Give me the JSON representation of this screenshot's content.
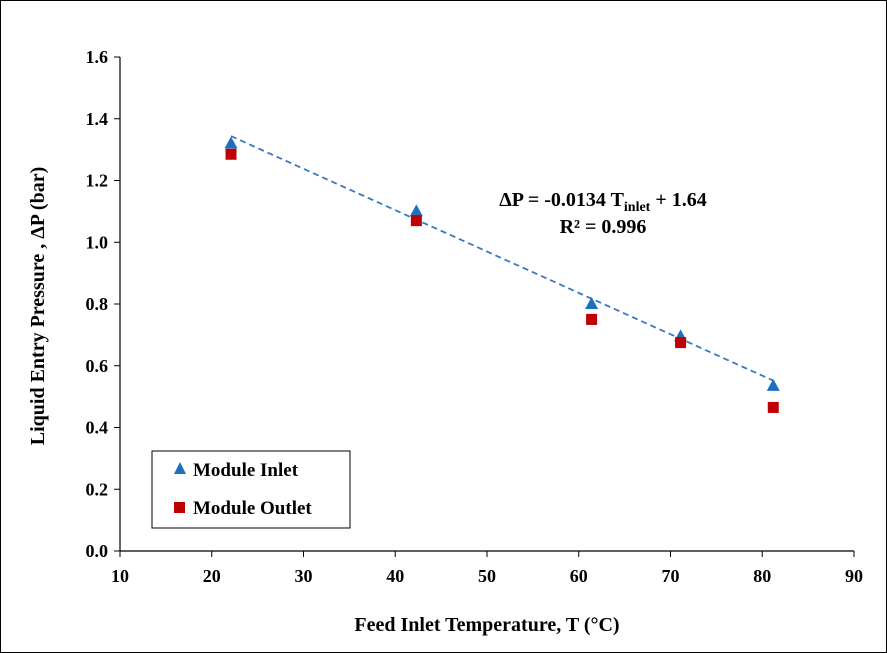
{
  "chart_data": {
    "type": "scatter",
    "xlabel": "Feed Inlet Temperature, T (°C)",
    "ylabel": "Liquid Entry Pressure , ΔP (bar)",
    "xlim": [
      10,
      90
    ],
    "ylim": [
      0.0,
      1.6
    ],
    "xticks": [
      "10",
      "20",
      "30",
      "40",
      "50",
      "60",
      "70",
      "80",
      "90"
    ],
    "yticks": [
      "0.0",
      "0.2",
      "0.4",
      "0.6",
      "0.8",
      "1.0",
      "1.2",
      "1.4",
      "1.6"
    ],
    "grid": false,
    "legend_position": "bottom-left",
    "series": [
      {
        "name": "Module Inlet",
        "marker": "triangle",
        "color": "#1f6fbf",
        "x": [
          22.1,
          42.3,
          61.4,
          71.1,
          81.2
        ],
        "y": [
          1.32,
          1.1,
          0.8,
          0.695,
          0.535
        ]
      },
      {
        "name": "Module Outlet",
        "marker": "square",
        "color": "#c00000",
        "x": [
          22.1,
          42.3,
          61.4,
          71.1,
          81.2
        ],
        "y": [
          1.285,
          1.07,
          0.75,
          0.675,
          0.465
        ]
      }
    ],
    "trendline": {
      "style": "dashed",
      "color": "#3a78c2",
      "slope": -0.0134,
      "intercept": 1.64,
      "x_range": [
        22.1,
        81.2
      ]
    },
    "annotation": {
      "eq_prefix": "ΔP = -0.0134 T",
      "eq_sub": "inlet",
      "eq_suffix": " + 1.64",
      "r2": "R² = 0.996"
    }
  }
}
